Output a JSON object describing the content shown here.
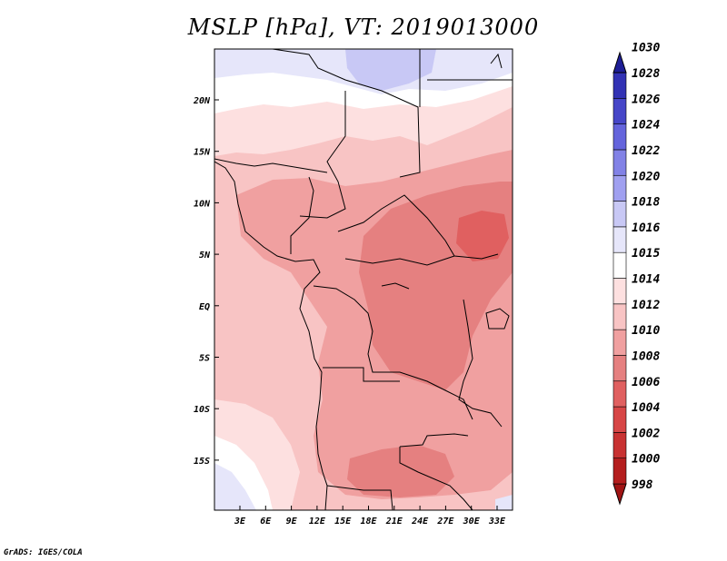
{
  "title": "MSLP [hPa], VT: 2019013000",
  "credit": "GrADS: IGES/COLA",
  "lat_ticks": [
    "20N",
    "15N",
    "10N",
    "5N",
    "EQ",
    "5S",
    "10S",
    "15S"
  ],
  "lon_ticks": [
    "3E",
    "6E",
    "9E",
    "12E",
    "15E",
    "18E",
    "21E",
    "24E",
    "27E",
    "30E",
    "33E"
  ],
  "colorbar": {
    "labels": [
      "998",
      "1000",
      "1002",
      "1004",
      "1006",
      "1008",
      "1010",
      "1012",
      "1014",
      "1015",
      "1016",
      "1018",
      "1020",
      "1022",
      "1024",
      "1026",
      "1028",
      "1030"
    ],
    "colors": [
      "#a01414",
      "#b41e1e",
      "#c83232",
      "#d74646",
      "#e06060",
      "#e58080",
      "#f0a0a0",
      "#f8c4c4",
      "#fde0e0",
      "#ffffff",
      "#e6e6fa",
      "#c8c8f5",
      "#a0a0f0",
      "#8282e6",
      "#6464dc",
      "#4646c8",
      "#3232b4",
      "#1e1e96"
    ]
  }
}
